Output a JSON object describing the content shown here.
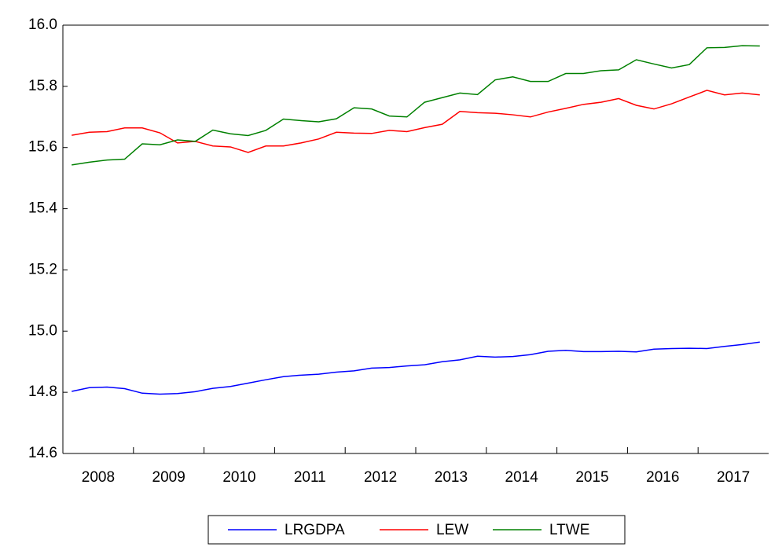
{
  "chart_data": {
    "type": "line",
    "categories": [
      "2008",
      null,
      null,
      null,
      "2009",
      null,
      null,
      null,
      "2010",
      null,
      null,
      null,
      "2011",
      null,
      null,
      null,
      "2012",
      null,
      null,
      null,
      "2013",
      null,
      null,
      null,
      "2014",
      null,
      null,
      null,
      "2015",
      null,
      null,
      null,
      "2016",
      null,
      null,
      null,
      "2017",
      null,
      null,
      null
    ],
    "series": [
      {
        "name": "LRGDPA",
        "color": "#0000ff",
        "values": [
          14.803,
          14.815,
          14.817,
          14.812,
          14.797,
          14.794,
          14.796,
          14.802,
          14.813,
          14.819,
          14.83,
          14.841,
          14.851,
          14.856,
          14.859,
          14.866,
          14.87,
          14.879,
          14.881,
          14.886,
          14.89,
          14.9,
          14.906,
          14.918,
          14.915,
          14.917,
          14.923,
          14.934,
          14.937,
          14.933,
          14.933,
          14.934,
          14.932,
          14.941,
          14.943,
          14.944,
          14.943,
          14.95,
          14.956,
          14.964
        ]
      },
      {
        "name": "LEW",
        "color": "#ff0000",
        "values": [
          15.64,
          15.65,
          15.652,
          15.664,
          15.664,
          15.648,
          15.615,
          15.62,
          15.605,
          15.602,
          15.584,
          15.605,
          15.605,
          15.615,
          15.628,
          15.65,
          15.647,
          15.646,
          15.656,
          15.652,
          15.665,
          15.676,
          15.718,
          15.714,
          15.712,
          15.707,
          15.7,
          15.716,
          15.728,
          15.741,
          15.748,
          15.76,
          15.738,
          15.726,
          15.743,
          15.765,
          15.787,
          15.772,
          15.778,
          15.772
        ]
      },
      {
        "name": "LTWE",
        "color": "#008000",
        "values": [
          15.543,
          15.552,
          15.559,
          15.562,
          15.612,
          15.609,
          15.625,
          15.62,
          15.657,
          15.645,
          15.639,
          15.656,
          15.693,
          15.688,
          15.684,
          15.694,
          15.73,
          15.726,
          15.703,
          15.7,
          15.748,
          15.763,
          15.778,
          15.773,
          15.821,
          15.831,
          15.816,
          15.816,
          15.842,
          15.842,
          15.851,
          15.854,
          15.887,
          15.873,
          15.86,
          15.871,
          15.926,
          15.927,
          15.933,
          15.932
        ]
      }
    ],
    "ylim": [
      14.6,
      16.0
    ],
    "yticks": [
      {
        "value": 14.6,
        "label": "14.6"
      },
      {
        "value": 14.8,
        "label": "14.8"
      },
      {
        "value": 15.0,
        "label": "15.0"
      },
      {
        "value": 15.2,
        "label": "15.2"
      },
      {
        "value": 15.4,
        "label": "15.4"
      },
      {
        "value": 15.6,
        "label": "15.6"
      },
      {
        "value": 15.8,
        "label": "15.8"
      },
      {
        "value": 16.0,
        "label": "16.0"
      }
    ],
    "legend": "bottom"
  }
}
